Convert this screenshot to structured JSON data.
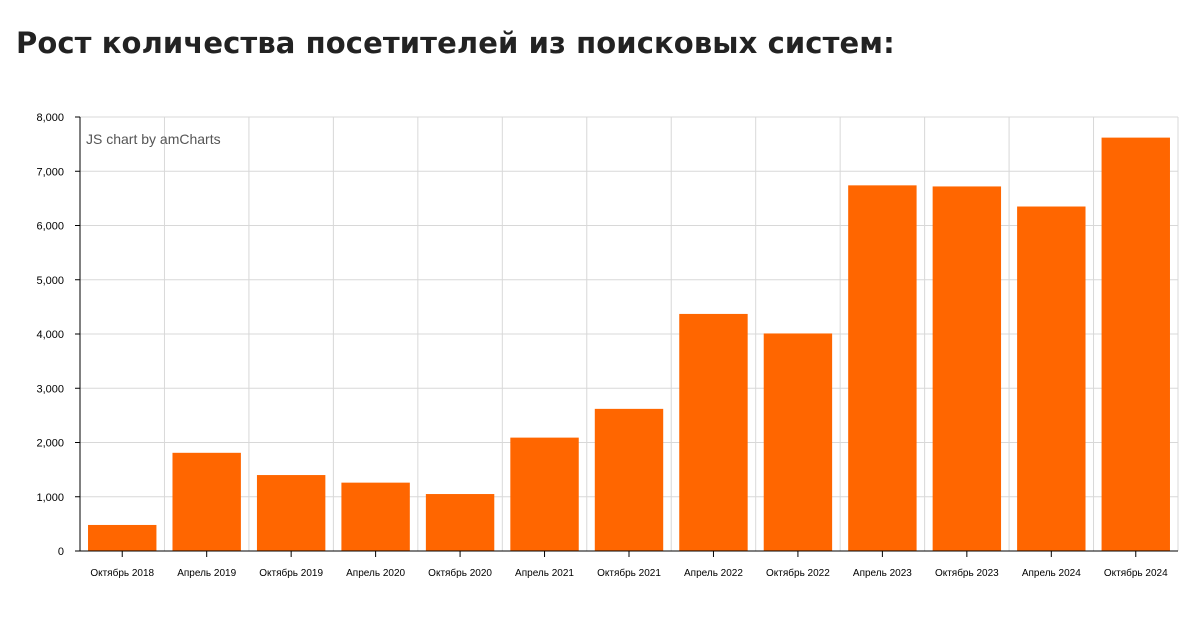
{
  "page": {
    "title": "Рост количества посетителей из поисковых систем:"
  },
  "chart_data": {
    "type": "bar",
    "watermark": "JS chart by amCharts",
    "categories": [
      "Октябрь 2018",
      "Апрель 2019",
      "Октябрь 2019",
      "Апрель 2020",
      "Октябрь 2020",
      "Апрель 2021",
      "Октябрь 2021",
      "Апрель 2022",
      "Октябрь 2022",
      "Апрель 2023",
      "Октябрь 2023",
      "Апрель 2024",
      "Октябрь 2024"
    ],
    "values": [
      480,
      1810,
      1400,
      1260,
      1050,
      2090,
      2620,
      4370,
      4010,
      6740,
      6720,
      6350,
      7620
    ],
    "ylim": [
      0,
      8000
    ],
    "yticks": [
      0,
      1000,
      2000,
      3000,
      4000,
      5000,
      6000,
      7000,
      8000
    ],
    "ytick_labels": [
      "0",
      "1,000",
      "2,000",
      "3,000",
      "4,000",
      "5,000",
      "6,000",
      "7,000",
      "8,000"
    ],
    "xlabel": "",
    "ylabel": "",
    "grid": true,
    "legend": "none",
    "bar_color": "#ff6600",
    "grid_color": "#d8d8d8",
    "axis_color": "#000000"
  }
}
